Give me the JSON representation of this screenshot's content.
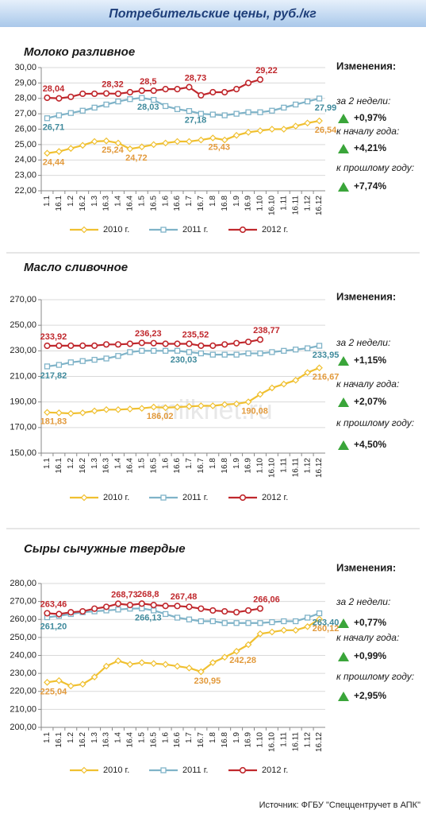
{
  "header": {
    "title": "Потребительские цены, руб./кг"
  },
  "watermark": "milknet.ru",
  "source": "Источник: ФГБУ \"Спеццентручет в АПК\"",
  "chart_data": [
    {
      "type": "line",
      "title": "Молоко разливное",
      "categories": [
        "1.1",
        "16.1",
        "1.2",
        "16.2",
        "1.3",
        "16.3",
        "1.4",
        "16.4",
        "1.5",
        "16.5",
        "1.6",
        "16.6",
        "1.7",
        "16.7",
        "1.8",
        "16.8",
        "1.9",
        "16.9",
        "1.10",
        "16.10",
        "1.11",
        "16.11",
        "1.12",
        "16.12"
      ],
      "ylim": [
        22,
        30
      ],
      "yticks": [
        {
          "value": 22,
          "label": "22,00"
        },
        {
          "value": 23,
          "label": "23,00"
        },
        {
          "value": 24,
          "label": "24,00"
        },
        {
          "value": 25,
          "label": "25,00"
        },
        {
          "value": 26,
          "label": "26,00"
        },
        {
          "value": 27,
          "label": "27,00"
        },
        {
          "value": 28,
          "label": "28,00"
        },
        {
          "value": 29,
          "label": "29,00"
        },
        {
          "value": 30,
          "label": "30,00"
        }
      ],
      "grid": true,
      "series": [
        {
          "name": "2010 г.",
          "color": "#f0c030",
          "label_color": "#e29a3c",
          "values": [
            24.44,
            24.55,
            24.75,
            24.95,
            25.2,
            25.24,
            25.1,
            24.72,
            24.85,
            25.0,
            25.1,
            25.2,
            25.2,
            25.3,
            25.43,
            25.3,
            25.6,
            25.8,
            25.9,
            26.0,
            26.0,
            26.2,
            26.4,
            26.54
          ],
          "value_labels": [
            "24,44",
            null,
            null,
            null,
            null,
            "25,24",
            null,
            "24,72",
            null,
            null,
            null,
            null,
            null,
            null,
            "25,43",
            null,
            null,
            null,
            null,
            null,
            null,
            null,
            null,
            "26,54"
          ]
        },
        {
          "name": "2011 г.",
          "color": "#7fb3c8",
          "label_color": "#3f8a9c",
          "values": [
            26.71,
            26.9,
            27.05,
            27.2,
            27.4,
            27.6,
            27.8,
            27.95,
            28.03,
            27.9,
            27.5,
            27.3,
            27.18,
            27.0,
            26.95,
            26.9,
            27.0,
            27.1,
            27.1,
            27.2,
            27.4,
            27.6,
            27.8,
            27.99
          ],
          "value_labels": [
            "26,71",
            null,
            null,
            null,
            null,
            null,
            null,
            null,
            "28,03",
            null,
            null,
            null,
            "27,18",
            null,
            null,
            null,
            null,
            null,
            null,
            null,
            null,
            null,
            null,
            "27,99"
          ]
        },
        {
          "name": "2012 г.",
          "color": "#c0282d",
          "label_color": "#c0282d",
          "values": [
            28.04,
            28.0,
            28.1,
            28.3,
            28.3,
            28.32,
            28.3,
            28.4,
            28.5,
            28.5,
            28.6,
            28.6,
            28.73,
            28.2,
            28.4,
            28.4,
            28.6,
            29.0,
            29.22,
            null,
            null,
            null,
            null,
            null
          ],
          "value_labels": [
            "28,04",
            null,
            null,
            null,
            null,
            "28,32",
            null,
            null,
            "28,5",
            null,
            null,
            null,
            "28,73",
            null,
            null,
            null,
            null,
            null,
            "29,22",
            null,
            null,
            null,
            null,
            null
          ]
        }
      ],
      "changes": {
        "title": "Изменения:",
        "items": [
          {
            "label": "за 2 недели:",
            "value": "+0,97%"
          },
          {
            "label": "к началу года:",
            "value": "+4,21%"
          },
          {
            "label": "к прошлому году:",
            "value": "+7,74%"
          }
        ]
      }
    },
    {
      "type": "line",
      "title": "Масло сливочное",
      "categories": [
        "1.1",
        "16.1",
        "1.2",
        "16.2",
        "1.3",
        "16.3",
        "1.4",
        "16.4",
        "1.5",
        "16.5",
        "1.6",
        "16.6",
        "1.7",
        "16.7",
        "1.8",
        "16.8",
        "1.9",
        "16.9",
        "1.10",
        "16.10",
        "1.11",
        "16.11",
        "1.12",
        "16.12"
      ],
      "ylim": [
        150,
        270
      ],
      "yticks": [
        {
          "value": 150,
          "label": "150,00"
        },
        {
          "value": 170,
          "label": "170,00"
        },
        {
          "value": 190,
          "label": "190,00"
        },
        {
          "value": 210,
          "label": "210,00"
        },
        {
          "value": 230,
          "label": "230,00"
        },
        {
          "value": 250,
          "label": "250,00"
        },
        {
          "value": 270,
          "label": "270,00"
        }
      ],
      "grid": true,
      "series": [
        {
          "name": "2010 г.",
          "color": "#f0c030",
          "label_color": "#e29a3c",
          "values": [
            181.83,
            181.5,
            181,
            181.5,
            183,
            184,
            184,
            184.5,
            185,
            186.02,
            185.5,
            186,
            186.5,
            187,
            187,
            188,
            188.5,
            190.08,
            196,
            201,
            204,
            207,
            213,
            216.67
          ],
          "value_labels": [
            "181,83",
            null,
            null,
            null,
            null,
            null,
            null,
            null,
            null,
            "186,02",
            null,
            null,
            null,
            null,
            null,
            null,
            null,
            "190,08",
            null,
            null,
            null,
            null,
            null,
            "216,67"
          ]
        },
        {
          "name": "2011 г.",
          "color": "#7fb3c8",
          "label_color": "#3f8a9c",
          "values": [
            217.82,
            219,
            221,
            222,
            223,
            224,
            226,
            229,
            230,
            230,
            230,
            230.03,
            229,
            228,
            227,
            227,
            227,
            228,
            228,
            229,
            230,
            231,
            232,
            233.95
          ],
          "value_labels": [
            "217,82",
            null,
            null,
            null,
            null,
            null,
            null,
            null,
            null,
            null,
            null,
            "230,03",
            null,
            null,
            null,
            null,
            null,
            null,
            null,
            null,
            null,
            null,
            null,
            "233,95"
          ]
        },
        {
          "name": "2012 г.",
          "color": "#c0282d",
          "label_color": "#c0282d",
          "values": [
            233.92,
            234,
            234,
            234,
            234,
            235,
            235,
            235.5,
            236.23,
            236,
            235.5,
            235.5,
            235.52,
            234,
            234,
            235,
            236,
            237,
            238.77,
            null,
            null,
            null,
            null,
            null
          ],
          "value_labels": [
            "233,92",
            null,
            null,
            null,
            null,
            null,
            null,
            null,
            "236,23",
            null,
            null,
            null,
            "235,52",
            null,
            null,
            null,
            null,
            null,
            "238,77",
            null,
            null,
            null,
            null,
            null
          ]
        }
      ],
      "changes": {
        "title": "Изменения:",
        "items": [
          {
            "label": "за 2 недели:",
            "value": "+1,15%"
          },
          {
            "label": "к началу года:",
            "value": "+2,07%"
          },
          {
            "label": "к прошлому году:",
            "value": "+4,50%"
          }
        ]
      }
    },
    {
      "type": "line",
      "title": "Сыры сычужные твердые",
      "categories": [
        "1.1",
        "16.1",
        "1.2",
        "16.2",
        "1.3",
        "16.3",
        "1.4",
        "16.4",
        "1.5",
        "16.5",
        "1.6",
        "16.6",
        "1.7",
        "16.7",
        "1.8",
        "16.8",
        "1.9",
        "16.9",
        "1.10",
        "16.10",
        "1.11",
        "16.11",
        "1.12",
        "16.12"
      ],
      "ylim": [
        200,
        280
      ],
      "yticks": [
        {
          "value": 200,
          "label": "200,00"
        },
        {
          "value": 210,
          "label": "210,00"
        },
        {
          "value": 220,
          "label": "220,00"
        },
        {
          "value": 230,
          "label": "230,00"
        },
        {
          "value": 240,
          "label": "240,00"
        },
        {
          "value": 250,
          "label": "250,00"
        },
        {
          "value": 260,
          "label": "260,00"
        },
        {
          "value": 270,
          "label": "270,00"
        },
        {
          "value": 280,
          "label": "280,00"
        }
      ],
      "grid": true,
      "series": [
        {
          "name": "2010 г.",
          "color": "#f0c030",
          "label_color": "#e29a3c",
          "values": [
            225.04,
            226,
            223,
            224,
            228,
            234,
            237,
            235,
            236,
            235.5,
            235,
            234,
            233,
            230.95,
            236,
            239,
            242.28,
            246,
            252,
            253,
            254,
            254,
            256,
            260.12
          ],
          "value_labels": [
            "225,04",
            null,
            null,
            null,
            null,
            null,
            null,
            null,
            null,
            null,
            null,
            null,
            null,
            "230,95",
            null,
            null,
            "242,28",
            null,
            null,
            null,
            null,
            null,
            null,
            "260,12"
          ]
        },
        {
          "name": "2011 г.",
          "color": "#7fb3c8",
          "label_color": "#3f8a9c",
          "values": [
            261.2,
            262,
            263,
            264,
            264.5,
            265,
            265.5,
            266,
            266.13,
            265,
            263,
            261,
            260,
            259,
            259,
            258,
            258,
            258,
            258,
            258.5,
            259,
            259,
            261,
            263.4
          ],
          "value_labels": [
            "261,20",
            null,
            null,
            null,
            null,
            null,
            null,
            null,
            "266,13",
            null,
            null,
            null,
            null,
            null,
            null,
            null,
            null,
            null,
            null,
            null,
            null,
            null,
            null,
            "263,40"
          ]
        },
        {
          "name": "2012 г.",
          "color": "#c0282d",
          "label_color": "#c0282d",
          "values": [
            263.46,
            263,
            264,
            264.5,
            266,
            267,
            268.73,
            268,
            268.8,
            268,
            267.5,
            267.48,
            267,
            266,
            265,
            264.5,
            264,
            265,
            266.06,
            null,
            null,
            null,
            null,
            null
          ],
          "value_labels": [
            "263,46",
            null,
            null,
            null,
            null,
            null,
            "268,73",
            null,
            "268,8",
            null,
            null,
            "267,48",
            null,
            null,
            null,
            null,
            null,
            null,
            "266,06",
            null,
            null,
            null,
            null,
            null
          ]
        }
      ],
      "changes": {
        "title": "Изменения:",
        "items": [
          {
            "label": "за 2 недели:",
            "value": "+0,77%"
          },
          {
            "label": "к началу года:",
            "value": "+0,99%"
          },
          {
            "label": "к прошлому году:",
            "value": "+2,95%"
          }
        ]
      }
    }
  ]
}
